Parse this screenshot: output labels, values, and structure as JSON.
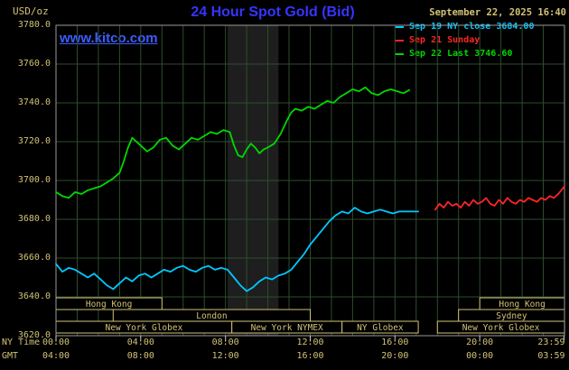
{
  "header": {
    "units": "USD/oz",
    "title": "24 Hour Spot Gold (Bid)",
    "datetime": "September 22, 2025 16:40",
    "watermark": "www.kitco.com"
  },
  "legend": [
    {
      "id": "sep19",
      "label": "Sep 19 NY close 3684.00",
      "color": "#00c8ff"
    },
    {
      "id": "sep21",
      "label": "Sep 21 Sunday",
      "color": "#ff2525"
    },
    {
      "id": "sep22",
      "label": "Sep 22 Last 3746.60",
      "color": "#00d800"
    }
  ],
  "axes": {
    "ny_label": "NY Time",
    "gmt_label": "GMT",
    "y_ticks": [
      "3780.0",
      "3760.0",
      "3740.0",
      "3720.0",
      "3700.0",
      "3680.0",
      "3660.0",
      "3640.0",
      "3620.0"
    ],
    "x_ticks": [
      {
        "hour": 0,
        "ny": "00:00",
        "gmt": "04:00"
      },
      {
        "hour": 4,
        "ny": "04:00",
        "gmt": "08:00"
      },
      {
        "hour": 8,
        "ny": "08:00",
        "gmt": "12:00"
      },
      {
        "hour": 12,
        "ny": "12:00",
        "gmt": "16:00"
      },
      {
        "hour": 16,
        "ny": "16:00",
        "gmt": "20:00"
      },
      {
        "hour": 20,
        "ny": "20:00",
        "gmt": "00:00"
      },
      {
        "hour": 23.98,
        "ny": "23:59",
        "gmt": "03:59"
      }
    ]
  },
  "sessions": [
    {
      "row": 0,
      "start": 0,
      "end": 5,
      "label": "Hong Kong"
    },
    {
      "row": 0,
      "start": 20,
      "end": 24,
      "label": "Hong Kong"
    },
    {
      "row": 1,
      "start": 2.7,
      "end": 12,
      "label": "London"
    },
    {
      "row": 1,
      "start": 19,
      "end": 24,
      "label": "Sydney"
    },
    {
      "row": 2,
      "start": 0,
      "end": 8.3,
      "label": "New York Globex"
    },
    {
      "row": 2,
      "start": 8.3,
      "end": 13.5,
      "label": "New York NYMEX"
    },
    {
      "row": 2,
      "start": 13.5,
      "end": 17.1,
      "label": "NY Globex"
    },
    {
      "row": 2,
      "start": 18,
      "end": 24,
      "label": "New York Globex"
    }
  ],
  "colors": {
    "tan": "#d2c276",
    "grid": "#2e4d2e",
    "border": "#9a9a9a",
    "band": "#1e1e1e",
    "tick": "#cccccc",
    "title_blue": "#3535ff",
    "kitco_blue": "#3c5eff"
  },
  "chart_data": {
    "type": "line",
    "title": "24 Hour Spot Gold (Bid)",
    "xlabel": "NY Time (hours)",
    "ylabel": "USD/oz",
    "xlim": [
      0,
      24
    ],
    "ylim": [
      3620,
      3780
    ],
    "grid": true,
    "legend_position": "top-right",
    "highlight_band_hours": [
      8.1,
      10.5
    ],
    "series": [
      {
        "id": "sep19",
        "name": "Sep 19 NY close",
        "close": 3684.0,
        "color": "#00c8ff",
        "points": [
          [
            0,
            3657
          ],
          [
            0.3,
            3653
          ],
          [
            0.6,
            3655
          ],
          [
            0.9,
            3654
          ],
          [
            1.2,
            3652
          ],
          [
            1.5,
            3650
          ],
          [
            1.8,
            3652
          ],
          [
            2.1,
            3649
          ],
          [
            2.4,
            3646
          ],
          [
            2.7,
            3644
          ],
          [
            3.0,
            3647
          ],
          [
            3.3,
            3650
          ],
          [
            3.6,
            3648
          ],
          [
            3.9,
            3651
          ],
          [
            4.2,
            3652
          ],
          [
            4.5,
            3650
          ],
          [
            4.8,
            3652
          ],
          [
            5.1,
            3654
          ],
          [
            5.4,
            3653
          ],
          [
            5.7,
            3655
          ],
          [
            6.0,
            3656
          ],
          [
            6.3,
            3654
          ],
          [
            6.6,
            3653
          ],
          [
            6.9,
            3655
          ],
          [
            7.2,
            3656
          ],
          [
            7.5,
            3654
          ],
          [
            7.8,
            3655
          ],
          [
            8.1,
            3654
          ],
          [
            8.4,
            3650
          ],
          [
            8.7,
            3646
          ],
          [
            9.0,
            3643
          ],
          [
            9.3,
            3645
          ],
          [
            9.6,
            3648
          ],
          [
            9.9,
            3650
          ],
          [
            10.2,
            3649
          ],
          [
            10.5,
            3651
          ],
          [
            10.8,
            3652
          ],
          [
            11.1,
            3654
          ],
          [
            11.4,
            3658
          ],
          [
            11.7,
            3662
          ],
          [
            12.0,
            3667
          ],
          [
            12.3,
            3671
          ],
          [
            12.6,
            3675
          ],
          [
            12.9,
            3679
          ],
          [
            13.2,
            3682
          ],
          [
            13.5,
            3684
          ],
          [
            13.8,
            3683
          ],
          [
            14.1,
            3686
          ],
          [
            14.4,
            3684
          ],
          [
            14.7,
            3683
          ],
          [
            15.0,
            3684
          ],
          [
            15.3,
            3685
          ],
          [
            15.6,
            3684
          ],
          [
            15.9,
            3683
          ],
          [
            16.2,
            3684
          ],
          [
            16.5,
            3684
          ],
          [
            16.8,
            3684
          ],
          [
            17.1,
            3684
          ]
        ]
      },
      {
        "id": "sep21",
        "name": "Sep 21 Sunday",
        "color": "#ff2525",
        "points": [
          [
            17.9,
            3685
          ],
          [
            18.1,
            3688
          ],
          [
            18.3,
            3686
          ],
          [
            18.5,
            3689
          ],
          [
            18.7,
            3687
          ],
          [
            18.9,
            3688
          ],
          [
            19.1,
            3686
          ],
          [
            19.3,
            3689
          ],
          [
            19.5,
            3687
          ],
          [
            19.7,
            3690
          ],
          [
            19.9,
            3688
          ],
          [
            20.1,
            3689
          ],
          [
            20.3,
            3691
          ],
          [
            20.5,
            3688
          ],
          [
            20.7,
            3687
          ],
          [
            20.9,
            3690
          ],
          [
            21.1,
            3688
          ],
          [
            21.3,
            3691
          ],
          [
            21.5,
            3689
          ],
          [
            21.7,
            3688
          ],
          [
            21.9,
            3690
          ],
          [
            22.1,
            3689
          ],
          [
            22.3,
            3691
          ],
          [
            22.5,
            3690
          ],
          [
            22.7,
            3689
          ],
          [
            22.9,
            3691
          ],
          [
            23.1,
            3690
          ],
          [
            23.3,
            3692
          ],
          [
            23.5,
            3691
          ],
          [
            23.7,
            3693
          ],
          [
            23.85,
            3695
          ],
          [
            24,
            3697
          ]
        ]
      },
      {
        "id": "sep22",
        "name": "Sep 22 Last",
        "last": 3746.6,
        "color": "#00d800",
        "points": [
          [
            0,
            3694
          ],
          [
            0.3,
            3692
          ],
          [
            0.6,
            3691
          ],
          [
            0.9,
            3694
          ],
          [
            1.2,
            3693
          ],
          [
            1.5,
            3695
          ],
          [
            1.8,
            3696
          ],
          [
            2.1,
            3697
          ],
          [
            2.4,
            3699
          ],
          [
            2.7,
            3701
          ],
          [
            3.0,
            3704
          ],
          [
            3.2,
            3710
          ],
          [
            3.4,
            3717
          ],
          [
            3.6,
            3722
          ],
          [
            3.8,
            3720
          ],
          [
            4.0,
            3718
          ],
          [
            4.3,
            3715
          ],
          [
            4.6,
            3717
          ],
          [
            4.9,
            3721
          ],
          [
            5.2,
            3722
          ],
          [
            5.5,
            3718
          ],
          [
            5.8,
            3716
          ],
          [
            6.1,
            3719
          ],
          [
            6.4,
            3722
          ],
          [
            6.7,
            3721
          ],
          [
            7.0,
            3723
          ],
          [
            7.3,
            3725
          ],
          [
            7.6,
            3724
          ],
          [
            7.9,
            3726
          ],
          [
            8.2,
            3725
          ],
          [
            8.4,
            3718
          ],
          [
            8.6,
            3713
          ],
          [
            8.8,
            3712
          ],
          [
            9.0,
            3716
          ],
          [
            9.2,
            3719
          ],
          [
            9.4,
            3717
          ],
          [
            9.6,
            3714
          ],
          [
            9.8,
            3716
          ],
          [
            10.0,
            3717
          ],
          [
            10.3,
            3719
          ],
          [
            10.6,
            3724
          ],
          [
            10.9,
            3731
          ],
          [
            11.1,
            3735
          ],
          [
            11.3,
            3737
          ],
          [
            11.6,
            3736
          ],
          [
            11.9,
            3738
          ],
          [
            12.2,
            3737
          ],
          [
            12.5,
            3739
          ],
          [
            12.8,
            3741
          ],
          [
            13.1,
            3740
          ],
          [
            13.4,
            3743
          ],
          [
            13.7,
            3745
          ],
          [
            14.0,
            3747
          ],
          [
            14.3,
            3746
          ],
          [
            14.6,
            3748
          ],
          [
            14.9,
            3745
          ],
          [
            15.2,
            3744
          ],
          [
            15.5,
            3746
          ],
          [
            15.8,
            3747
          ],
          [
            16.1,
            3746
          ],
          [
            16.4,
            3745
          ],
          [
            16.67,
            3746.6
          ]
        ]
      }
    ]
  }
}
